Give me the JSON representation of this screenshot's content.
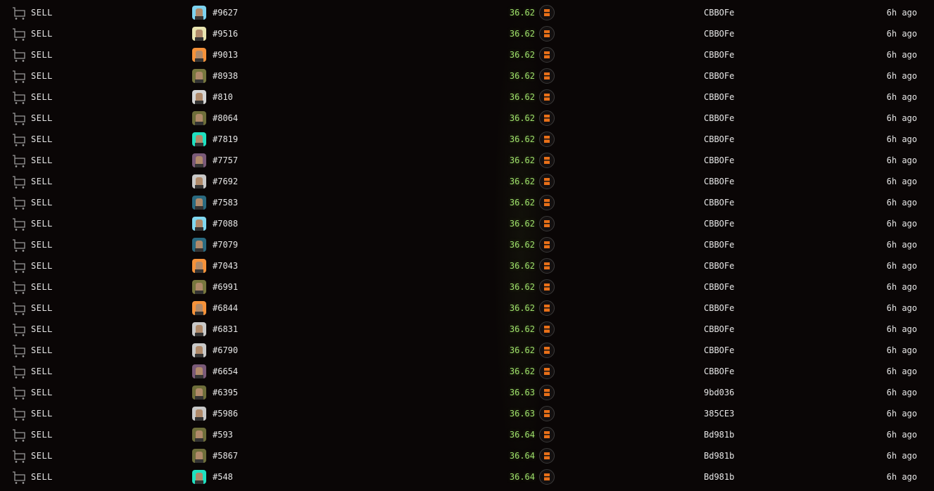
{
  "accent_price_color": "#9ee06a",
  "coin_icon": "ape-coin-icon",
  "sales": [
    {
      "type": "SELL",
      "token_id": "#9627",
      "avatar_bg": "#7dd3f0",
      "price": "36.62",
      "seller": "CBBOFe",
      "time": "6h ago"
    },
    {
      "type": "SELL",
      "token_id": "#9516",
      "avatar_bg": "#e8e4b0",
      "price": "36.62",
      "seller": "CBBOFe",
      "time": "6h ago"
    },
    {
      "type": "SELL",
      "token_id": "#9013",
      "avatar_bg": "#f5923a",
      "price": "36.62",
      "seller": "CBBOFe",
      "time": "6h ago"
    },
    {
      "type": "SELL",
      "token_id": "#8938",
      "avatar_bg": "#77773e",
      "price": "36.62",
      "seller": "CBBOFe",
      "time": "6h ago"
    },
    {
      "type": "SELL",
      "token_id": "#810",
      "avatar_bg": "#d4d4d4",
      "price": "36.62",
      "seller": "CBBOFe",
      "time": "6h ago"
    },
    {
      "type": "SELL",
      "token_id": "#8064",
      "avatar_bg": "#6e6e3a",
      "price": "36.62",
      "seller": "CBBOFe",
      "time": "6h ago"
    },
    {
      "type": "SELL",
      "token_id": "#7819",
      "avatar_bg": "#1fe0c0",
      "price": "36.62",
      "seller": "CBBOFe",
      "time": "6h ago"
    },
    {
      "type": "SELL",
      "token_id": "#7757",
      "avatar_bg": "#7a5a78",
      "price": "36.62",
      "seller": "CBBOFe",
      "time": "6h ago"
    },
    {
      "type": "SELL",
      "token_id": "#7692",
      "avatar_bg": "#c8c8c8",
      "price": "36.62",
      "seller": "CBBOFe",
      "time": "6h ago"
    },
    {
      "type": "SELL",
      "token_id": "#7583",
      "avatar_bg": "#2a6a80",
      "price": "36.62",
      "seller": "CBBOFe",
      "time": "6h ago"
    },
    {
      "type": "SELL",
      "token_id": "#7088",
      "avatar_bg": "#80d8f0",
      "price": "36.62",
      "seller": "CBBOFe",
      "time": "6h ago"
    },
    {
      "type": "SELL",
      "token_id": "#7079",
      "avatar_bg": "#2a6a80",
      "price": "36.62",
      "seller": "CBBOFe",
      "time": "6h ago"
    },
    {
      "type": "SELL",
      "token_id": "#7043",
      "avatar_bg": "#f5923a",
      "price": "36.62",
      "seller": "CBBOFe",
      "time": "6h ago"
    },
    {
      "type": "SELL",
      "token_id": "#6991",
      "avatar_bg": "#77773e",
      "price": "36.62",
      "seller": "CBBOFe",
      "time": "6h ago"
    },
    {
      "type": "SELL",
      "token_id": "#6844",
      "avatar_bg": "#f5923a",
      "price": "36.62",
      "seller": "CBBOFe",
      "time": "6h ago"
    },
    {
      "type": "SELL",
      "token_id": "#6831",
      "avatar_bg": "#c8c8c8",
      "price": "36.62",
      "seller": "CBBOFe",
      "time": "6h ago"
    },
    {
      "type": "SELL",
      "token_id": "#6790",
      "avatar_bg": "#c8c8c8",
      "price": "36.62",
      "seller": "CBBOFe",
      "time": "6h ago"
    },
    {
      "type": "SELL",
      "token_id": "#6654",
      "avatar_bg": "#7a5a78",
      "price": "36.62",
      "seller": "CBBOFe",
      "time": "6h ago"
    },
    {
      "type": "SELL",
      "token_id": "#6395",
      "avatar_bg": "#6e6e3a",
      "price": "36.63",
      "seller": "9bd036",
      "time": "6h ago"
    },
    {
      "type": "SELL",
      "token_id": "#5986",
      "avatar_bg": "#c8c8c8",
      "price": "36.63",
      "seller": "385CE3",
      "time": "6h ago"
    },
    {
      "type": "SELL",
      "token_id": "#593",
      "avatar_bg": "#6e6e3a",
      "price": "36.64",
      "seller": "Bd981b",
      "time": "6h ago"
    },
    {
      "type": "SELL",
      "token_id": "#5867",
      "avatar_bg": "#6e6e3a",
      "price": "36.64",
      "seller": "Bd981b",
      "time": "6h ago"
    },
    {
      "type": "SELL",
      "token_id": "#548",
      "avatar_bg": "#1fe0c0",
      "price": "36.64",
      "seller": "Bd981b",
      "time": "6h ago"
    }
  ]
}
